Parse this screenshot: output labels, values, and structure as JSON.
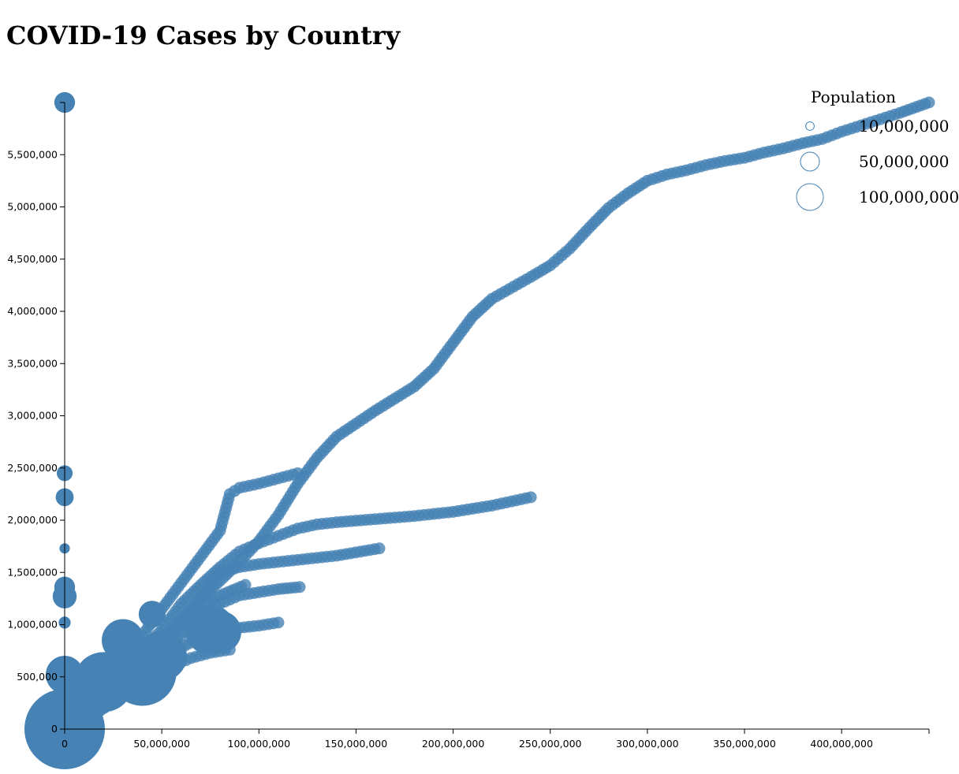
{
  "title": "COVID-19 Cases by Country",
  "chart_data": {
    "type": "scatter",
    "title": "COVID-19 Cases by Country",
    "xlabel": "",
    "ylabel": "",
    "xlim": [
      0,
      445000000
    ],
    "ylim": [
      0,
      6000000
    ],
    "x_ticks": [
      0,
      50000000,
      100000000,
      150000000,
      200000000,
      250000000,
      300000000,
      350000000,
      400000000
    ],
    "x_tick_labels": [
      "0",
      "50,000,000",
      "100,000,000",
      "150,000,000",
      "200,000,000",
      "250,000,000",
      "300,000,000",
      "350,000,000",
      "400,000,000"
    ],
    "y_ticks": [
      0,
      500000,
      1000000,
      1500000,
      2000000,
      2500000,
      3000000,
      3500000,
      4000000,
      4500000,
      5000000,
      5500000
    ],
    "y_tick_labels": [
      "0",
      "500,000",
      "1,000,000",
      "1,500,000",
      "2,000,000",
      "2,500,000",
      "3,000,000",
      "3,500,000",
      "4,000,000",
      "4,500,000",
      "5,000,000",
      "5,500,000"
    ],
    "color": "#4682b4",
    "legend": {
      "title": "Population",
      "position": "top-right",
      "entries": [
        {
          "label": "10,000,000",
          "value": 10000000
        },
        {
          "label": "50,000,000",
          "value": 50000000
        },
        {
          "label": "100,000,000",
          "value": 100000000
        }
      ]
    },
    "series": [
      {
        "points": [
          [
            0,
            0
          ],
          [
            10000000,
            150000
          ],
          [
            20000000,
            320000
          ],
          [
            30000000,
            480000
          ],
          [
            40000000,
            640000
          ],
          [
            50000000,
            850000
          ],
          [
            60000000,
            1050000
          ],
          [
            70000000,
            1250000
          ],
          [
            80000000,
            1420000
          ],
          [
            90000000,
            1600000
          ],
          [
            100000000,
            1800000
          ],
          [
            110000000,
            2050000
          ],
          [
            120000000,
            2350000
          ],
          [
            130000000,
            2600000
          ],
          [
            140000000,
            2800000
          ],
          [
            160000000,
            3050000
          ],
          [
            180000000,
            3280000
          ],
          [
            190000000,
            3450000
          ],
          [
            200000000,
            3700000
          ],
          [
            210000000,
            3950000
          ],
          [
            220000000,
            4120000
          ],
          [
            240000000,
            4330000
          ],
          [
            250000000,
            4440000
          ],
          [
            260000000,
            4600000
          ],
          [
            270000000,
            4800000
          ],
          [
            280000000,
            4990000
          ],
          [
            290000000,
            5130000
          ],
          [
            300000000,
            5250000
          ],
          [
            310000000,
            5310000
          ],
          [
            320000000,
            5350000
          ],
          [
            330000000,
            5400000
          ],
          [
            340000000,
            5440000
          ],
          [
            350000000,
            5470000
          ],
          [
            360000000,
            5520000
          ],
          [
            370000000,
            5560000
          ],
          [
            380000000,
            5610000
          ],
          [
            390000000,
            5650000
          ],
          [
            400000000,
            5720000
          ],
          [
            410000000,
            5780000
          ],
          [
            420000000,
            5840000
          ],
          [
            430000000,
            5900000
          ],
          [
            445000000,
            6000000
          ]
        ]
      },
      {
        "points": [
          [
            0,
            0
          ],
          [
            10000000,
            200000
          ],
          [
            20000000,
            420000
          ],
          [
            30000000,
            650000
          ],
          [
            40000000,
            900000
          ],
          [
            50000000,
            1150000
          ],
          [
            60000000,
            1400000
          ],
          [
            70000000,
            1650000
          ],
          [
            80000000,
            1900000
          ],
          [
            85000000,
            2250000
          ],
          [
            90000000,
            2310000
          ],
          [
            100000000,
            2350000
          ],
          [
            110000000,
            2400000
          ],
          [
            120000000,
            2450000
          ]
        ]
      },
      {
        "points": [
          [
            0,
            0
          ],
          [
            10000000,
            120000
          ],
          [
            20000000,
            300000
          ],
          [
            30000000,
            500000
          ],
          [
            40000000,
            750000
          ],
          [
            50000000,
            950000
          ],
          [
            60000000,
            1200000
          ],
          [
            70000000,
            1380000
          ],
          [
            80000000,
            1550000
          ],
          [
            90000000,
            1700000
          ],
          [
            100000000,
            1780000
          ],
          [
            110000000,
            1850000
          ],
          [
            120000000,
            1920000
          ],
          [
            130000000,
            1960000
          ],
          [
            140000000,
            1980000
          ],
          [
            160000000,
            2010000
          ],
          [
            180000000,
            2040000
          ],
          [
            200000000,
            2080000
          ],
          [
            220000000,
            2140000
          ],
          [
            240000000,
            2220000
          ]
        ]
      },
      {
        "points": [
          [
            0,
            0
          ],
          [
            10000000,
            110000
          ],
          [
            20000000,
            260000
          ],
          [
            30000000,
            450000
          ],
          [
            40000000,
            650000
          ],
          [
            50000000,
            850000
          ],
          [
            60000000,
            1050000
          ],
          [
            70000000,
            1250000
          ],
          [
            80000000,
            1500000
          ],
          [
            90000000,
            1550000
          ],
          [
            100000000,
            1580000
          ],
          [
            120000000,
            1620000
          ],
          [
            140000000,
            1660000
          ],
          [
            162000000,
            1730000
          ]
        ]
      },
      {
        "points": [
          [
            0,
            0
          ],
          [
            10000000,
            100000
          ],
          [
            20000000,
            230000
          ],
          [
            30000000,
            400000
          ],
          [
            40000000,
            580000
          ],
          [
            50000000,
            760000
          ],
          [
            60000000,
            900000
          ],
          [
            70000000,
            1050000
          ],
          [
            80000000,
            1200000
          ],
          [
            90000000,
            1280000
          ],
          [
            100000000,
            1310000
          ],
          [
            110000000,
            1340000
          ],
          [
            121000000,
            1360000
          ]
        ]
      },
      {
        "points": [
          [
            0,
            0
          ],
          [
            10000000,
            80000
          ],
          [
            20000000,
            200000
          ],
          [
            30000000,
            350000
          ],
          [
            40000000,
            500000
          ],
          [
            50000000,
            650000
          ],
          [
            60000000,
            780000
          ],
          [
            70000000,
            880000
          ],
          [
            80000000,
            950000
          ],
          [
            90000000,
            970000
          ],
          [
            100000000,
            990000
          ],
          [
            110000000,
            1020000
          ]
        ]
      },
      {
        "points": [
          [
            0,
            0
          ],
          [
            10000000,
            130000
          ],
          [
            20000000,
            280000
          ],
          [
            30000000,
            450000
          ],
          [
            40000000,
            620000
          ],
          [
            50000000,
            800000
          ],
          [
            60000000,
            1000000
          ],
          [
            70000000,
            1180000
          ],
          [
            80000000,
            1280000
          ],
          [
            93000000,
            1380000
          ]
        ]
      },
      {
        "points": [
          [
            0,
            0
          ],
          [
            8000000,
            60000
          ],
          [
            16000000,
            150000
          ],
          [
            25000000,
            260000
          ],
          [
            35000000,
            380000
          ],
          [
            45000000,
            500000
          ],
          [
            55000000,
            600000
          ],
          [
            65000000,
            680000
          ],
          [
            75000000,
            730000
          ],
          [
            85000000,
            760000
          ]
        ]
      }
    ],
    "axis_points": [
      {
        "x": 0,
        "y": 6000000,
        "population": 60000000
      },
      {
        "x": 0,
        "y": 2450000,
        "population": 35000000
      },
      {
        "x": 0,
        "y": 2220000,
        "population": 45000000
      },
      {
        "x": 0,
        "y": 1730000,
        "population": 15000000
      },
      {
        "x": 0,
        "y": 1360000,
        "population": 60000000
      },
      {
        "x": 0,
        "y": 1270000,
        "population": 80000000
      },
      {
        "x": 0,
        "y": 1020000,
        "population": 20000000
      },
      {
        "x": 0,
        "y": 520000,
        "population": 200000000
      },
      {
        "x": 0,
        "y": 0,
        "population": 900000000
      }
    ],
    "blobs": [
      {
        "x": 20000000,
        "y": 450000,
        "population": 500000000
      },
      {
        "x": 40000000,
        "y": 550000,
        "population": 650000000
      },
      {
        "x": 50000000,
        "y": 700000,
        "population": 350000000
      },
      {
        "x": 75000000,
        "y": 950000,
        "population": 350000000
      },
      {
        "x": 45000000,
        "y": 1100000,
        "population": 100000000
      },
      {
        "x": 30000000,
        "y": 850000,
        "population": 250000000
      },
      {
        "x": 80000000,
        "y": 930000,
        "population": 250000000
      }
    ]
  }
}
